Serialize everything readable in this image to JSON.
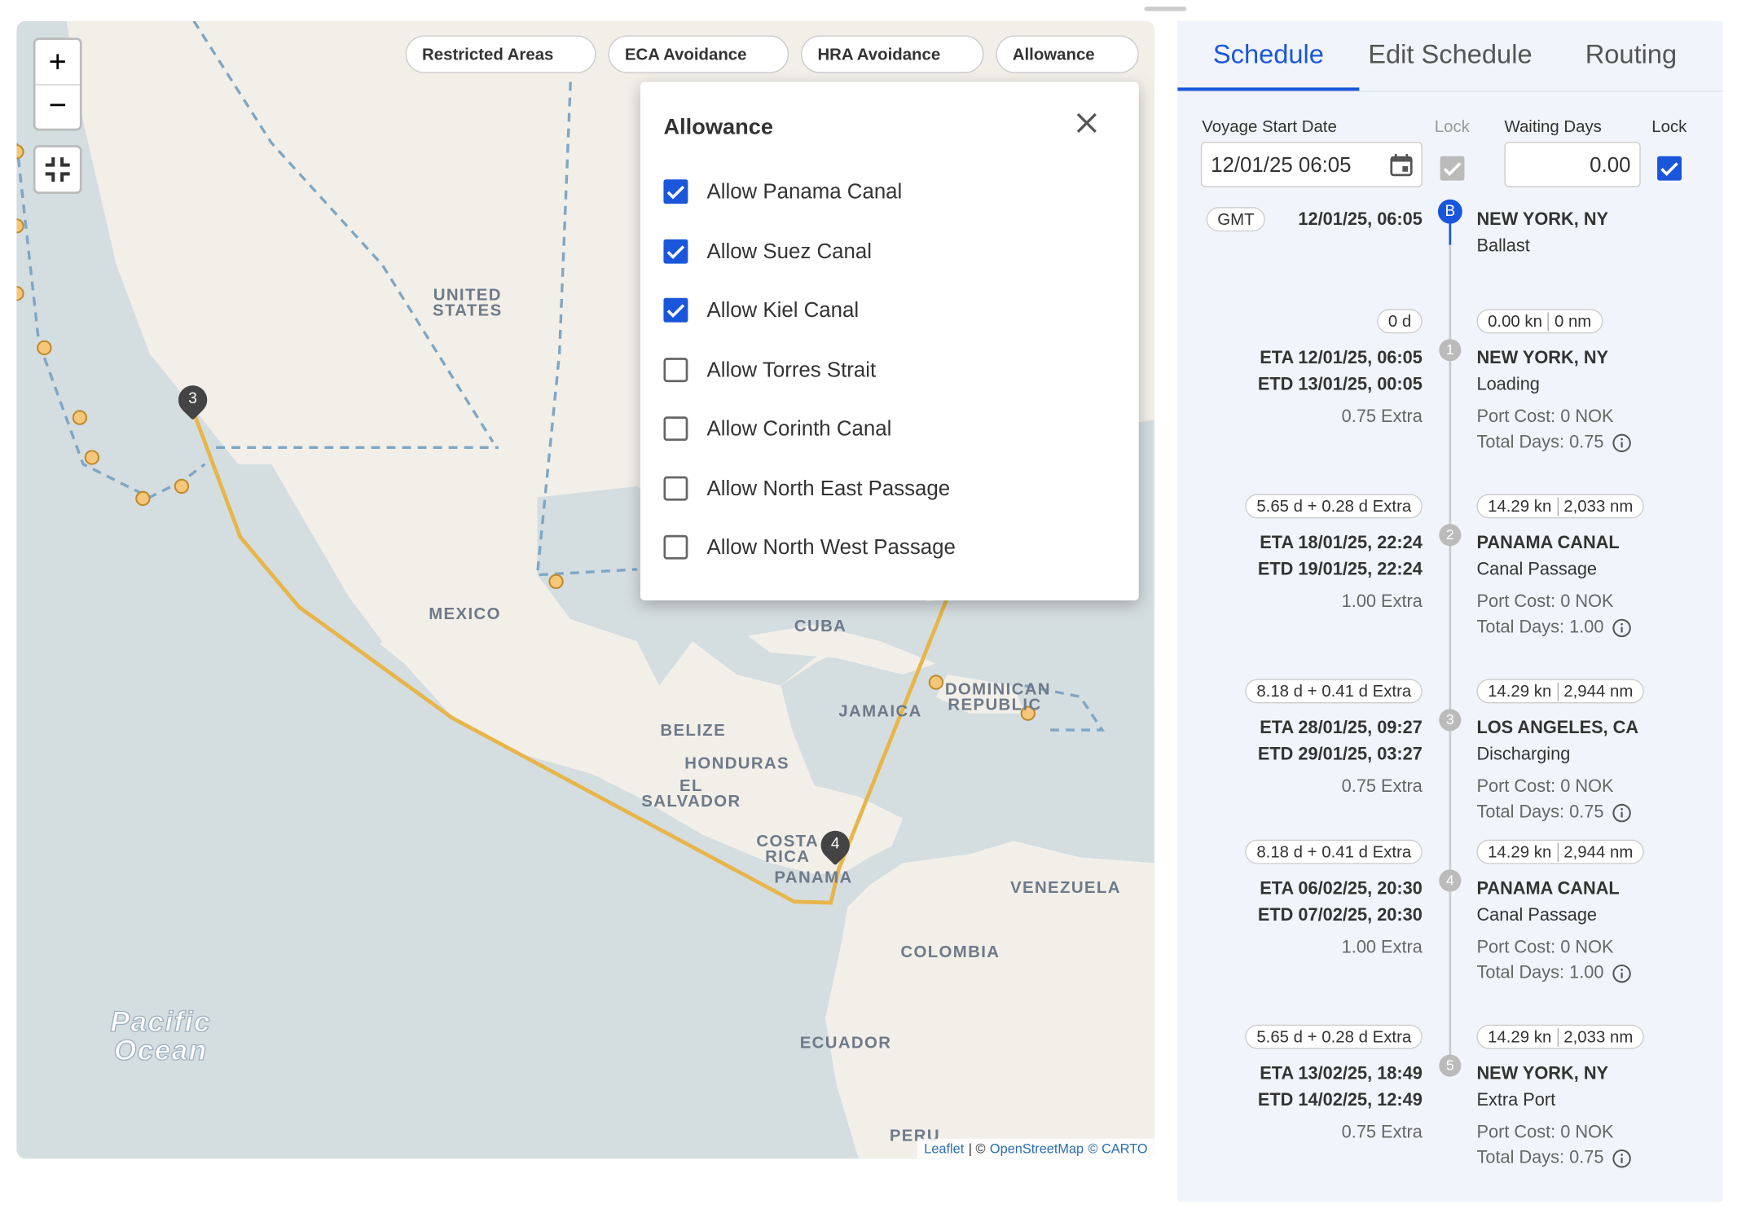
{
  "map": {
    "filters": [
      "Restricted Areas",
      "ECA Avoidance",
      "HRA Avoidance",
      "Allowance"
    ],
    "zoom_in": "+",
    "zoom_out": "−",
    "labels": [
      "UNITED STATES",
      "MEXICO",
      "CUBA",
      "DOMINICAN REPUBLIC",
      "JAMAICA",
      "BELIZE",
      "HONDURAS",
      "EL SALVADOR",
      "COSTA RICA",
      "PANAMA",
      "VENEZUELA",
      "COLOMBIA",
      "ECUADOR",
      "PERU",
      "Pacific Ocean"
    ],
    "markers": [
      "3",
      "4"
    ],
    "attribution": [
      "Leaflet",
      "| ©",
      "OpenStreetMap",
      "© CARTO"
    ]
  },
  "allowance_panel": {
    "title": "Allowance",
    "options": [
      {
        "label": "Allow Panama Canal",
        "checked": true
      },
      {
        "label": "Allow Suez Canal",
        "checked": true
      },
      {
        "label": "Allow Kiel Canal",
        "checked": true
      },
      {
        "label": "Allow Torres Strait",
        "checked": false
      },
      {
        "label": "Allow Corinth Canal",
        "checked": false
      },
      {
        "label": "Allow North East Passage",
        "checked": false
      },
      {
        "label": "Allow North West Passage",
        "checked": false
      }
    ]
  },
  "schedule": {
    "tabs": [
      "Schedule",
      "Edit Schedule",
      "Routing"
    ],
    "active_tab": 0,
    "voyage_start_label": "Voyage Start Date",
    "voyage_start": "12/01/25 06:05",
    "lock_label": "Lock",
    "voyage_start_lock": {
      "checked": true,
      "disabled": true
    },
    "waiting_days_label": "Waiting Days",
    "waiting_days": "0.00",
    "waiting_days_lock": {
      "checked": true,
      "disabled": false
    },
    "timezone": "GMT",
    "start": {
      "marker": "B",
      "date": "12/01/25, 06:05",
      "name": "NEW YORK, NY",
      "activity": "Ballast"
    },
    "legs": [
      {
        "duration": "0 d",
        "speed": "0.00 kn",
        "distance": "0 nm"
      },
      {
        "duration": "5.65 d + 0.28 d Extra",
        "speed": "14.29 kn",
        "distance": "2,033 nm"
      },
      {
        "duration": "8.18 d + 0.41 d Extra",
        "speed": "14.29 kn",
        "distance": "2,944 nm"
      },
      {
        "duration": "8.18 d + 0.41 d Extra",
        "speed": "14.29 kn",
        "distance": "2,944 nm"
      },
      {
        "duration": "5.65 d + 0.28 d Extra",
        "speed": "14.29 kn",
        "distance": "2,033 nm"
      }
    ],
    "ports": [
      {
        "marker": "1",
        "eta": "ETA 12/01/25, 06:05",
        "etd": "ETD 13/01/25, 00:05",
        "extra": "0.75 Extra",
        "name": "NEW YORK, NY",
        "activity": "Loading",
        "cost": "Port Cost: 0 NOK",
        "days": "Total Days: 0.75"
      },
      {
        "marker": "2",
        "eta": "ETA 18/01/25, 22:24",
        "etd": "ETD 19/01/25, 22:24",
        "extra": "1.00 Extra",
        "name": "PANAMA CANAL",
        "activity": "Canal Passage",
        "cost": "Port Cost: 0 NOK",
        "days": "Total Days: 1.00"
      },
      {
        "marker": "3",
        "eta": "ETA 28/01/25, 09:27",
        "etd": "ETD 29/01/25, 03:27",
        "extra": "0.75 Extra",
        "name": "LOS ANGELES, CA",
        "activity": "Discharging",
        "cost": "Port Cost: 0 NOK",
        "days": "Total Days: 0.75"
      },
      {
        "marker": "4",
        "eta": "ETA 06/02/25, 20:30",
        "etd": "ETD 07/02/25, 20:30",
        "extra": "1.00 Extra",
        "name": "PANAMA CANAL",
        "activity": "Canal Passage",
        "cost": "Port Cost: 0 NOK",
        "days": "Total Days: 1.00"
      },
      {
        "marker": "5",
        "eta": "ETA 13/02/25, 18:49",
        "etd": "ETD 14/02/25, 12:49",
        "extra": "0.75 Extra",
        "name": "NEW YORK, NY",
        "activity": "Extra Port",
        "cost": "Port Cost: 0 NOK",
        "days": "Total Days: 0.75"
      }
    ]
  }
}
